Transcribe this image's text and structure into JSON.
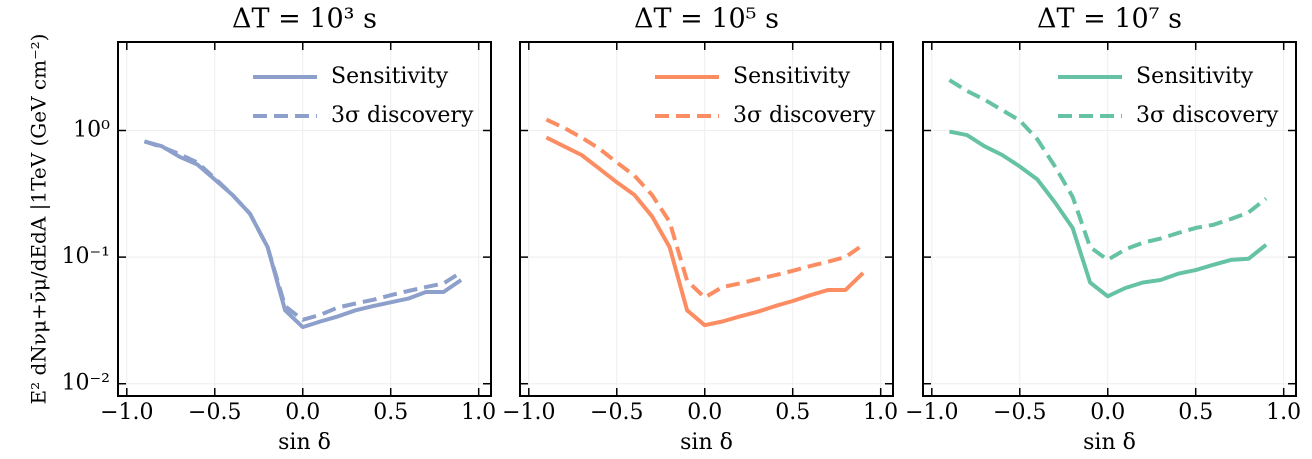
{
  "chart_data": [
    {
      "type": "line",
      "title": "ΔT = 10³ s",
      "x_label": "sin δ",
      "y_label": "E² dNνμ+ν̄μ/dEdA |1TeV (GeV cm⁻²)",
      "x": [
        -0.9,
        -0.8,
        -0.7,
        -0.6,
        -0.5,
        -0.4,
        -0.3,
        -0.2,
        -0.1,
        0.0,
        0.1,
        0.2,
        0.3,
        0.4,
        0.5,
        0.6,
        0.7,
        0.8,
        0.9
      ],
      "series": [
        {
          "name": "Sensitivity",
          "color": "#8da0cb",
          "dash": false,
          "values": [
            0.82,
            0.75,
            0.62,
            0.54,
            0.41,
            0.31,
            0.22,
            0.12,
            0.038,
            0.028,
            0.031,
            0.034,
            0.038,
            0.041,
            0.044,
            0.047,
            0.053,
            0.053,
            0.066
          ]
        },
        {
          "name": "3σ discovery",
          "color": "#8da0cb",
          "dash": true,
          "values": [
            0.82,
            0.74,
            0.65,
            0.56,
            0.42,
            0.31,
            0.22,
            0.12,
            0.041,
            0.032,
            0.035,
            0.04,
            0.043,
            0.046,
            0.05,
            0.054,
            0.058,
            0.062,
            0.076
          ]
        }
      ],
      "xlim": [
        -1.05,
        1.07
      ],
      "xticks": [
        {
          "value": -1,
          "label": "−1.0"
        },
        {
          "value": -0.5,
          "label": "−0.5"
        },
        {
          "value": 0,
          "label": "0.0"
        },
        0.5,
        {
          "value": 1,
          "label": "1.0"
        }
      ],
      "ylim": [
        0.008,
        5
      ],
      "yscale": "log",
      "yticks": [
        {
          "value": 0.01,
          "label": "10⁻²"
        },
        {
          "value": 0.1,
          "label": "10⁻¹"
        },
        {
          "value": 1,
          "label": "10⁰"
        }
      ],
      "grid": true,
      "legend": "upper right"
    },
    {
      "type": "line",
      "title": "ΔT = 10⁵ s",
      "x_label": "sin δ",
      "sharey": true,
      "x": [
        -0.9,
        -0.8,
        -0.7,
        -0.6,
        -0.5,
        -0.4,
        -0.3,
        -0.2,
        -0.1,
        0.0,
        0.1,
        0.2,
        0.3,
        0.4,
        0.5,
        0.6,
        0.7,
        0.8,
        0.9
      ],
      "series": [
        {
          "name": "Sensitivity",
          "color": "#fc8d62",
          "dash": false,
          "values": [
            0.88,
            0.75,
            0.64,
            0.5,
            0.39,
            0.31,
            0.21,
            0.12,
            0.038,
            0.029,
            0.031,
            0.034,
            0.037,
            0.041,
            0.045,
            0.05,
            0.055,
            0.055,
            0.075
          ]
        },
        {
          "name": "3σ discovery",
          "color": "#fc8d62",
          "dash": true,
          "values": [
            1.22,
            1.05,
            0.88,
            0.72,
            0.56,
            0.44,
            0.31,
            0.19,
            0.065,
            0.048,
            0.058,
            0.062,
            0.067,
            0.072,
            0.078,
            0.085,
            0.092,
            0.1,
            0.125
          ]
        }
      ],
      "xlim": [
        -1.05,
        1.07
      ],
      "xticks": [
        {
          "value": -1,
          "label": "−1.0"
        },
        {
          "value": -0.5,
          "label": "−0.5"
        },
        {
          "value": 0,
          "label": "0.0"
        },
        0.5,
        {
          "value": 1,
          "label": "1.0"
        }
      ],
      "grid": true,
      "legend": "upper right"
    },
    {
      "type": "line",
      "title": "ΔT = 10⁷ s",
      "x_label": "sin δ",
      "sharey": true,
      "x": [
        -0.9,
        -0.8,
        -0.7,
        -0.6,
        -0.5,
        -0.4,
        -0.3,
        -0.2,
        -0.1,
        0.0,
        0.1,
        0.2,
        0.3,
        0.4,
        0.5,
        0.6,
        0.7,
        0.8,
        0.9
      ],
      "series": [
        {
          "name": "Sensitivity",
          "color": "#66c2a5",
          "dash": false,
          "values": [
            0.98,
            0.92,
            0.75,
            0.64,
            0.52,
            0.41,
            0.27,
            0.17,
            0.063,
            0.049,
            0.057,
            0.063,
            0.066,
            0.074,
            0.079,
            0.087,
            0.095,
            0.097,
            0.125
          ]
        },
        {
          "name": "3σ discovery",
          "color": "#66c2a5",
          "dash": true,
          "values": [
            2.5,
            2.05,
            1.75,
            1.45,
            1.2,
            0.85,
            0.52,
            0.3,
            0.12,
            0.095,
            0.115,
            0.13,
            0.14,
            0.155,
            0.17,
            0.18,
            0.2,
            0.225,
            0.29
          ]
        }
      ],
      "xlim": [
        -1.05,
        1.07
      ],
      "xticks": [
        {
          "value": -1,
          "label": "−1.0"
        },
        {
          "value": -0.5,
          "label": "−0.5"
        },
        {
          "value": 0,
          "label": "0.0"
        },
        0.5,
        {
          "value": 1,
          "label": "1.0"
        }
      ],
      "grid": true,
      "legend": "upper right"
    }
  ]
}
